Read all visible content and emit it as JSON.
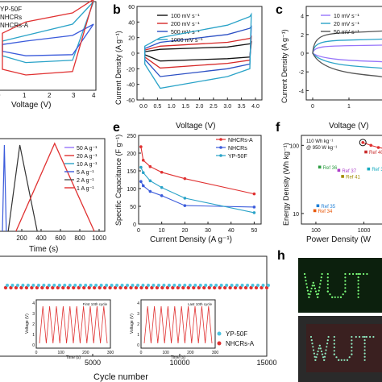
{
  "panels": {
    "b": "b",
    "c": "c",
    "e": "e",
    "f": "f",
    "h": "h"
  },
  "chart_data": [
    {
      "id": "a",
      "type": "line",
      "xlabel": "Voltage (V)",
      "xticks": [
        "0",
        "1",
        "2",
        "3",
        "4"
      ],
      "legend": [
        "YP-50F",
        "NHCRs",
        "NHCRs-A"
      ],
      "series_colors": [
        "#2aa3c8",
        "#3b5bdb",
        "#e03131"
      ]
    },
    {
      "id": "b",
      "type": "line",
      "xlabel": "Voltage (V)",
      "ylabel": "Current Density (A g⁻¹)",
      "xticks": [
        "0.0",
        "0.5",
        "1.0",
        "1.5",
        "2.0",
        "2.5",
        "3.0",
        "3.5",
        "4.0"
      ],
      "yticks": [
        "60",
        "40",
        "20",
        "0",
        "-20",
        "-40",
        "-60"
      ],
      "xlim": [
        0,
        4
      ],
      "ylim": [
        -60,
        60
      ],
      "series": [
        {
          "name": "100 mV s⁻¹",
          "color": "#111111",
          "upper": [
            [
              0.05,
              2
            ],
            [
              0.6,
              5
            ],
            [
              3.0,
              8
            ],
            [
              3.8,
              12
            ],
            [
              3.85,
              14
            ]
          ],
          "lower": [
            [
              0.05,
              -2
            ],
            [
              0.6,
              -10
            ],
            [
              3.0,
              -7
            ],
            [
              3.8,
              -5
            ],
            [
              3.85,
              14
            ]
          ]
        },
        {
          "name": "200 mV s⁻¹",
          "color": "#d62828",
          "upper": [
            [
              0.05,
              4
            ],
            [
              0.6,
              9
            ],
            [
              3.0,
              14
            ],
            [
              3.8,
              19
            ],
            [
              3.85,
              21
            ]
          ],
          "lower": [
            [
              0.05,
              -5
            ],
            [
              0.6,
              -19
            ],
            [
              3.0,
              -13
            ],
            [
              3.8,
              -9
            ],
            [
              3.85,
              21
            ]
          ]
        },
        {
          "name": "500 mV s⁻¹",
          "color": "#2b4fc4",
          "upper": [
            [
              0.05,
              6
            ],
            [
              0.6,
              14
            ],
            [
              3.0,
              24
            ],
            [
              3.8,
              32
            ],
            [
              3.85,
              34
            ]
          ],
          "lower": [
            [
              0.05,
              -8
            ],
            [
              0.6,
              -30
            ],
            [
              3.0,
              -20
            ],
            [
              3.8,
              -14
            ],
            [
              3.85,
              34
            ]
          ]
        },
        {
          "name": "1000 mV s⁻¹",
          "color": "#2aa3c8",
          "upper": [
            [
              0.05,
              9
            ],
            [
              0.6,
              20
            ],
            [
              3.0,
              36
            ],
            [
              3.8,
              47
            ],
            [
              3.85,
              50
            ]
          ],
          "lower": [
            [
              0.05,
              -14
            ],
            [
              0.6,
              -45
            ],
            [
              3.0,
              -30
            ],
            [
              3.8,
              -20
            ],
            [
              3.85,
              50
            ]
          ]
        }
      ]
    },
    {
      "id": "c",
      "type": "line",
      "xlabel": "Voltage (V)",
      "ylabel": "Current Density (A g⁻¹)",
      "xticks": [
        "0",
        "1",
        "2"
      ],
      "yticks": [
        "4",
        "2",
        "0",
        "-2",
        "-4"
      ],
      "ylim": [
        -5,
        5
      ],
      "series": [
        {
          "name": "10 mV s⁻¹",
          "color": "#9775fa"
        },
        {
          "name": "20 mV s⁻¹",
          "color": "#2aa3c8"
        },
        {
          "name": "50 mV s⁻¹",
          "color": "#555555"
        }
      ]
    },
    {
      "id": "d",
      "type": "line",
      "xlabel": "Time (s)",
      "xticks": [
        "200",
        "400",
        "600",
        "800",
        "1000"
      ],
      "legend": [
        "50 A g⁻¹",
        "20 A g⁻¹",
        "10 A g⁻¹",
        "5 A g⁻¹",
        "2 A g⁻¹",
        "1 A g⁻¹"
      ],
      "legend_colors": [
        "#9775fa",
        "#e03131",
        "#2aa3c8",
        "#3b5bdb",
        "#555555",
        "#e03131"
      ]
    },
    {
      "id": "e",
      "type": "line",
      "xlabel": "Current Density (A g⁻¹)",
      "ylabel": "Specific Capacitance (F g⁻¹)",
      "xticks": [
        "0",
        "10",
        "20",
        "30",
        "40",
        "50"
      ],
      "yticks": [
        "250",
        "200",
        "150",
        "100",
        "50",
        "0"
      ],
      "xlim": [
        0,
        53
      ],
      "ylim": [
        0,
        250
      ],
      "x": [
        1,
        2,
        5,
        10,
        20,
        50
      ],
      "series": [
        {
          "name": "NHCRs-A",
          "color": "#e03131",
          "values": [
            218,
            180,
            162,
            146,
            128,
            85
          ]
        },
        {
          "name": "NHCRs",
          "color": "#3b5bdb",
          "values": [
            120,
            108,
            92,
            80,
            52,
            48
          ]
        },
        {
          "name": "YP-50F",
          "color": "#2aa3c8",
          "values": [
            160,
            145,
            122,
            103,
            73,
            32
          ]
        }
      ]
    },
    {
      "id": "f",
      "type": "scatter",
      "xlabel": "Power Density (W",
      "ylabel": "Energy Density (Wh kg⁻¹)",
      "xticks": [
        "100",
        "1000"
      ],
      "yticks": [
        "100",
        "10"
      ],
      "scale": "log",
      "annotation": "110 Wh kg⁻¹ @ 950 W kg⁻¹",
      "points": [
        {
          "label": "Ref 40",
          "x": 1100,
          "y": 80,
          "color": "#c92a2a"
        },
        {
          "label": "Ref 36",
          "x": 120,
          "y": 48,
          "color": "#2f9e44"
        },
        {
          "label": "Ref 37",
          "x": 300,
          "y": 43,
          "color": "#ae3ec9"
        },
        {
          "label": "Ref 39",
          "x": 1250,
          "y": 45,
          "color": "#15aabf"
        },
        {
          "label": "Ref 41",
          "x": 360,
          "y": 35,
          "color": "#a08a00"
        },
        {
          "label": "Ref 35",
          "x": 110,
          "y": 13,
          "color": "#1c7ed6"
        },
        {
          "label": "Ref 34",
          "x": 95,
          "y": 11,
          "color": "#e8590c"
        }
      ]
    },
    {
      "id": "g",
      "type": "scatter",
      "xlabel": "Cycle number",
      "xticks": [
        "5000",
        "10000",
        "15000"
      ],
      "legend": [
        "YP-50F",
        "NHCRs-A"
      ],
      "inset_xlabel": "Time (s)",
      "inset_ylabel": "Voltage (V)",
      "inset_left": {
        "title": "First 10th cycle",
        "xticks": [
          "0",
          "100",
          "200",
          "300"
        ],
        "yticks": [
          "4",
          "3",
          "2",
          "1",
          "0"
        ]
      },
      "inset_right": {
        "title": "Last 10th cycle",
        "xticks": [
          "0",
          "100",
          "200",
          "300"
        ],
        "yticks": [
          "4",
          "3",
          "2",
          "1",
          "0"
        ]
      }
    }
  ]
}
